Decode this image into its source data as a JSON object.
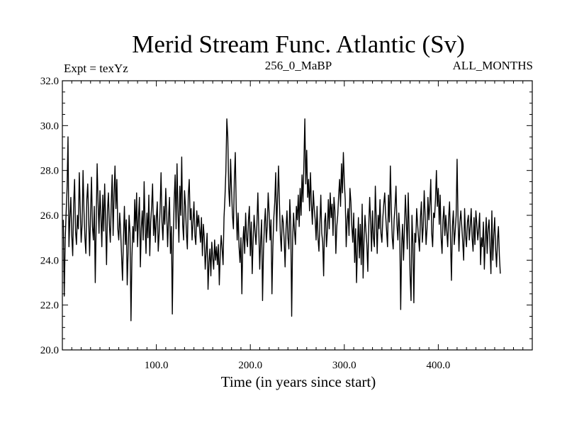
{
  "chart_data": {
    "type": "line",
    "title": "Merid Stream Func. Atlantic (Sv)",
    "header_left": "Expt = texYz",
    "header_center": "256_0_MaBP",
    "header_right": "ALL_MONTHS",
    "xlabel": "Time (in years since start)",
    "ylabel": "",
    "xlim": [
      0,
      500
    ],
    "ylim": [
      20.0,
      32.0
    ],
    "x_ticks": [
      100,
      200,
      300,
      400
    ],
    "x_tick_labels": [
      "100.0",
      "200.0",
      "300.0",
      "400.0"
    ],
    "y_ticks": [
      20,
      22,
      24,
      26,
      28,
      30,
      32
    ],
    "y_tick_labels": [
      "20.0",
      "22.0",
      "24.0",
      "26.0",
      "28.0",
      "30.0",
      "32.0"
    ],
    "grid": false,
    "line_color": "#000000",
    "series": [
      {
        "x_start": 1,
        "x_step": 1,
        "values": [
          25.8,
          22.4,
          24.9,
          26.1,
          27.2,
          29.5,
          24.6,
          25.9,
          26.8,
          25.1,
          24.2,
          26.5,
          27.6,
          25.3,
          24.7,
          26.0,
          25.4,
          27.9,
          26.3,
          24.8,
          25.6,
          28.0,
          26.2,
          25.0,
          24.3,
          26.7,
          27.4,
          25.8,
          24.2,
          26.1,
          27.7,
          25.5,
          24.9,
          26.4,
          23.0,
          25.7,
          28.3,
          26.6,
          25.2,
          27.1,
          26.0,
          24.6,
          26.9,
          25.3,
          27.4,
          25.8,
          23.8,
          26.2,
          27.0,
          25.6,
          24.8,
          26.5,
          27.8,
          25.1,
          26.9,
          28.2,
          26.3,
          27.6,
          25.4,
          24.9,
          26.1,
          25.3,
          24.2,
          23.1,
          25.0,
          26.4,
          24.7,
          25.8,
          22.9,
          24.4,
          26.0,
          25.2,
          21.3,
          24.1,
          25.5,
          24.8,
          26.7,
          25.3,
          27.0,
          24.6,
          25.9,
          26.8,
          23.7,
          25.4,
          26.2,
          24.9,
          27.5,
          25.6,
          24.3,
          26.1,
          25.0,
          26.9,
          24.2,
          25.7,
          26.4,
          27.4,
          25.1,
          26.0,
          24.8,
          25.9,
          26.6,
          24.4,
          25.2,
          26.3,
          27.9,
          25.7,
          24.9,
          26.4,
          25.6,
          27.2,
          26.1,
          24.6,
          25.9,
          26.8,
          24.3,
          25.5,
          21.6,
          25.0,
          26.7,
          27.8,
          25.4,
          28.3,
          26.2,
          24.8,
          27.3,
          26.0,
          28.6,
          25.6,
          24.9,
          27.1,
          26.4,
          25.2,
          24.5,
          26.9,
          27.6,
          25.8,
          26.3,
          24.9,
          25.7,
          26.6,
          25.1,
          24.7,
          26.2,
          25.5,
          26.0,
          25.4,
          24.8,
          25.9,
          24.2,
          25.6,
          25.0,
          23.6,
          24.4,
          25.2,
          22.7,
          23.9,
          24.5,
          23.3,
          24.8,
          24.1,
          23.6,
          24.9,
          24.0,
          24.6,
          23.8,
          24.7,
          22.9,
          24.3,
          25.1,
          24.5,
          23.8,
          25.9,
          26.8,
          28.0,
          30.3,
          29.5,
          27.2,
          26.4,
          28.5,
          27.1,
          26.0,
          25.4,
          27.6,
          28.8,
          26.3,
          24.9,
          26.1,
          24.6,
          23.9,
          25.0,
          22.5,
          24.7,
          25.5,
          24.3,
          26.1,
          25.0,
          24.6,
          25.8,
          26.4,
          24.2,
          25.7,
          23.4,
          24.9,
          26.0,
          25.3,
          24.7,
          25.6,
          27.0,
          25.4,
          23.6,
          24.9,
          25.8,
          22.2,
          24.4,
          25.6,
          26.3,
          24.8,
          25.5,
          27.0,
          26.1,
          24.9,
          25.8,
          22.5,
          24.6,
          25.9,
          26.6,
          27.9,
          25.3,
          26.8,
          28.2,
          26.5,
          25.1,
          24.4,
          26.0,
          25.7,
          24.9,
          23.7,
          25.4,
          26.2,
          25.0,
          24.5,
          26.7,
          25.6,
          21.5,
          24.9,
          26.1,
          25.3,
          24.7,
          26.4,
          25.8,
          26.9,
          25.5,
          27.2,
          26.0,
          27.8,
          26.6,
          28.3,
          30.3,
          27.4,
          28.9,
          26.8,
          27.6,
          26.2,
          27.9,
          26.5,
          25.6,
          27.1,
          26.3,
          25.8,
          24.9,
          26.4,
          25.0,
          24.4,
          25.6,
          26.9,
          25.2,
          24.8,
          23.3,
          25.7,
          26.1,
          24.6,
          25.3,
          26.7,
          25.4,
          27.0,
          25.9,
          26.5,
          25.1,
          26.8,
          26.2,
          24.3,
          25.5,
          26.0,
          26.9,
          27.6,
          26.4,
          28.3,
          27.0,
          28.8,
          27.5,
          26.7,
          24.6,
          25.8,
          26.3,
          25.1,
          27.2,
          26.6,
          25.5,
          24.8,
          26.1,
          23.9,
          25.4,
          23.0,
          24.6,
          25.9,
          24.1,
          25.6,
          23.8,
          26.5,
          23.2,
          24.9,
          26.0,
          25.3,
          24.7,
          23.5,
          25.5,
          26.8,
          25.7,
          24.4,
          26.2,
          25.0,
          24.6,
          27.3,
          25.8,
          24.3,
          26.0,
          25.4,
          26.7,
          25.2,
          24.8,
          25.9,
          26.5,
          27.0,
          26.0,
          25.3,
          24.6,
          26.9,
          25.7,
          28.2,
          26.3,
          25.0,
          24.5,
          25.8,
          26.4,
          27.3,
          25.6,
          24.9,
          26.1,
          25.2,
          21.8,
          24.7,
          25.6,
          24.0,
          25.4,
          26.9,
          25.8,
          24.5,
          27.0,
          25.3,
          23.3,
          22.2,
          26.0,
          24.7,
          22.1,
          25.2,
          24.8,
          26.3,
          25.6,
          25.0,
          24.4,
          25.9,
          26.6,
          24.8,
          25.5,
          27.1,
          26.0,
          24.7,
          25.4,
          26.8,
          25.8,
          26.5,
          27.6,
          25.2,
          24.6,
          26.1,
          25.9,
          26.7,
          28.0,
          26.4,
          27.2,
          25.6,
          26.9,
          25.0,
          24.3,
          25.8,
          26.4,
          25.1,
          26.0,
          25.3,
          24.6,
          25.9,
          26.6,
          24.9,
          23.1,
          25.5,
          26.2,
          24.7,
          25.3,
          26.0,
          28.5,
          25.8,
          24.4,
          25.7,
          26.2,
          25.5,
          24.8,
          24.0,
          26.3,
          25.1,
          24.6,
          25.7,
          26.0,
          24.9,
          25.5,
          26.3,
          25.0,
          24.4,
          25.9,
          24.7,
          26.2,
          25.6,
          24.9,
          25.4,
          26.1,
          23.8,
          25.0,
          24.6,
          25.7,
          23.6,
          24.9,
          25.9,
          24.3,
          25.4,
          25.8,
          24.6,
          23.4,
          26.2,
          24.0,
          25.1,
          25.9,
          24.5,
          23.7,
          24.9,
          25.5,
          24.2,
          23.4
        ]
      }
    ]
  }
}
